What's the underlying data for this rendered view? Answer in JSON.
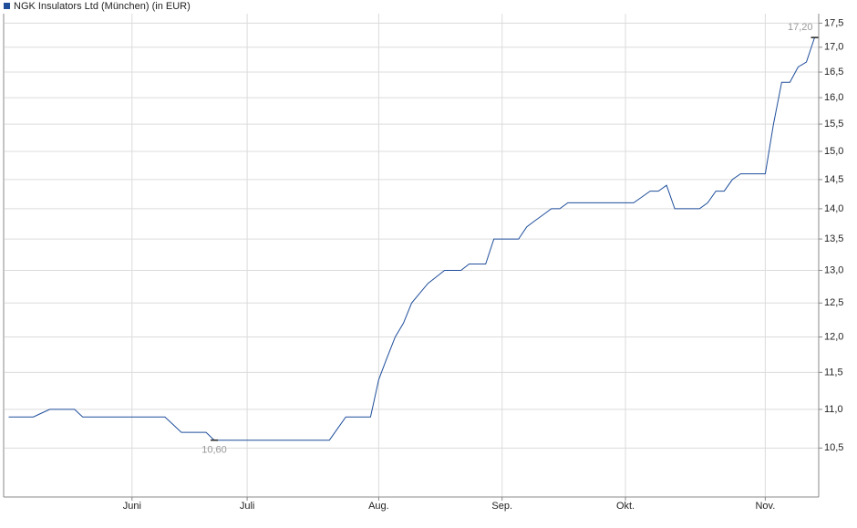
{
  "chart_data": {
    "type": "line",
    "log_scale": true,
    "grid": true,
    "categories": [
      null,
      null,
      null,
      null,
      null,
      null,
      null,
      null,
      null,
      null,
      null,
      null,
      null,
      null,
      null,
      "Juni",
      null,
      null,
      null,
      null,
      null,
      null,
      null,
      null,
      null,
      null,
      null,
      null,
      null,
      "Juli",
      null,
      null,
      null,
      null,
      null,
      null,
      null,
      null,
      null,
      null,
      null,
      null,
      null,
      null,
      null,
      "Aug.",
      null,
      null,
      null,
      null,
      null,
      null,
      null,
      null,
      null,
      null,
      null,
      null,
      null,
      null,
      "Sep.",
      null,
      null,
      null,
      null,
      null,
      null,
      null,
      null,
      null,
      null,
      null,
      null,
      null,
      null,
      "Okt.",
      null,
      null,
      null,
      null,
      null,
      null,
      null,
      null,
      null,
      null,
      null,
      null,
      null,
      null,
      null,
      null,
      "Nov.",
      null,
      null,
      null,
      null,
      null,
      null
    ],
    "series": [
      {
        "name": "NGK Insulators Ltd (München) (in EUR)",
        "color": "#1f4e9b",
        "values": [
          10.9,
          10.9,
          10.9,
          10.9,
          10.95,
          11.0,
          11.0,
          11.0,
          11.0,
          10.9,
          10.9,
          10.9,
          10.9,
          10.9,
          10.9,
          10.9,
          10.9,
          10.9,
          10.9,
          10.9,
          10.8,
          10.7,
          10.7,
          10.7,
          10.7,
          10.6,
          10.6,
          10.6,
          10.6,
          10.6,
          10.6,
          10.6,
          10.6,
          10.6,
          10.6,
          10.6,
          10.6,
          10.6,
          10.6,
          10.6,
          10.75,
          10.9,
          10.9,
          10.9,
          10.9,
          11.4,
          11.7,
          12.0,
          12.2,
          12.5,
          12.65,
          12.8,
          12.9,
          13.0,
          13.0,
          13.0,
          13.1,
          13.1,
          13.1,
          13.5,
          13.5,
          13.5,
          13.5,
          13.7,
          13.8,
          13.9,
          14.0,
          14.0,
          14.1,
          14.1,
          14.1,
          14.1,
          14.1,
          14.1,
          14.1,
          14.1,
          14.1,
          14.2,
          14.3,
          14.3,
          14.4,
          14.0,
          14.0,
          14.0,
          14.0,
          14.1,
          14.3,
          14.3,
          14.5,
          14.6,
          14.6,
          14.6,
          14.6,
          15.5,
          16.3,
          16.3,
          16.6,
          16.7,
          17.2
        ]
      }
    ],
    "annotations": [
      {
        "text": "10,60",
        "value": 10.6
      },
      {
        "text": "17,20",
        "value": 17.2
      }
    ],
    "ylim": [
      9.9,
      17.7
    ],
    "yticks": [
      {
        "value": 10.5,
        "label": "10,5"
      },
      {
        "value": 11.0,
        "label": "11,0"
      },
      {
        "value": 11.5,
        "label": "11,5"
      },
      {
        "value": 12.0,
        "label": "12,0"
      },
      {
        "value": 12.5,
        "label": "12,5"
      },
      {
        "value": 13.0,
        "label": "13,0"
      },
      {
        "value": 13.5,
        "label": "13,5"
      },
      {
        "value": 14.0,
        "label": "14,0"
      },
      {
        "value": 14.5,
        "label": "14,5"
      },
      {
        "value": 15.0,
        "label": "15,0"
      },
      {
        "value": 15.5,
        "label": "15,5"
      },
      {
        "value": 16.0,
        "label": "16,0"
      },
      {
        "value": 16.5,
        "label": "16,5"
      },
      {
        "value": 17.0,
        "label": "17,0"
      },
      {
        "value": 17.5,
        "label": "17,5"
      }
    ]
  }
}
